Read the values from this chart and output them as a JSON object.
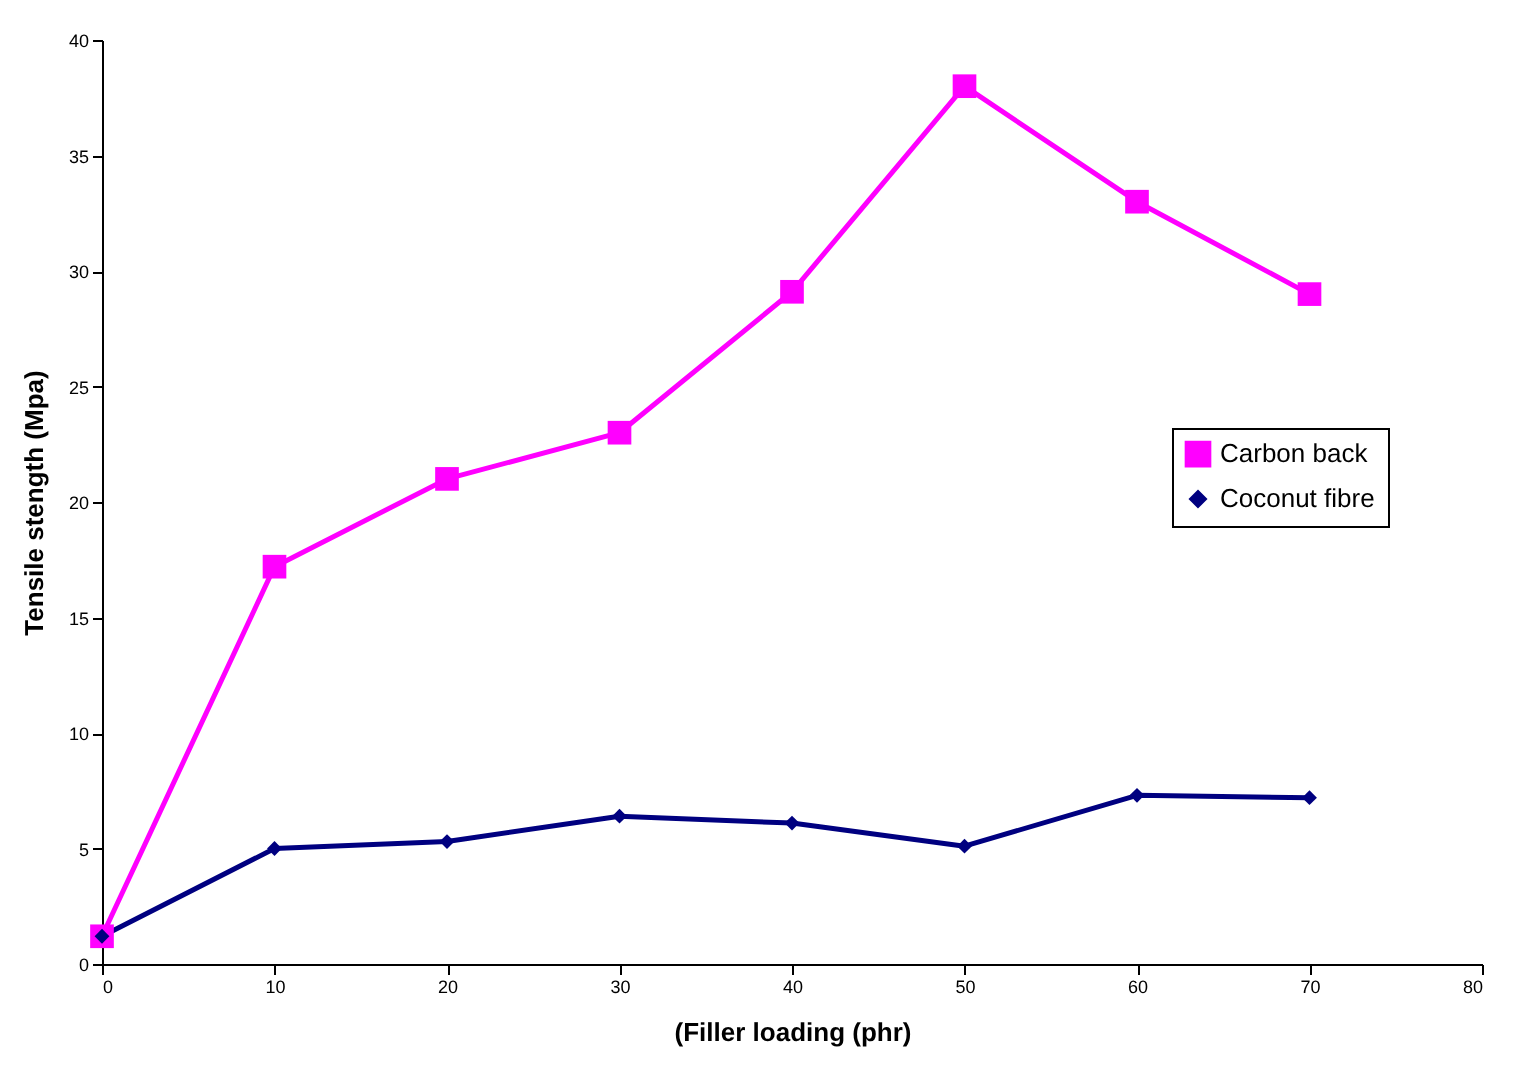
{
  "chart_data": {
    "type": "line",
    "xlabel": "(Filler loading (phr)",
    "ylabel": "Tensile stength (Mpa)",
    "x": [
      0,
      10,
      20,
      30,
      40,
      50,
      60,
      70
    ],
    "series": [
      {
        "name": "Carbon back",
        "color": "#ff00ff",
        "marker": "square",
        "values": [
          1.2,
          17.2,
          21,
          23,
          29.1,
          38,
          33,
          29
        ]
      },
      {
        "name": "Coconut fibre",
        "color": "#000080",
        "marker": "diamond",
        "values": [
          1.2,
          5.0,
          5.3,
          6.4,
          6.1,
          5.1,
          7.3,
          7.2
        ]
      }
    ],
    "xlim": [
      0,
      80
    ],
    "xticks": [
      0,
      10,
      20,
      30,
      40,
      50,
      60,
      70,
      80
    ],
    "ylim": [
      0,
      40
    ],
    "yticks": [
      0,
      5,
      10,
      15,
      20,
      25,
      30,
      35,
      40
    ],
    "grid": false,
    "legend": "right",
    "line_style": "solid"
  }
}
